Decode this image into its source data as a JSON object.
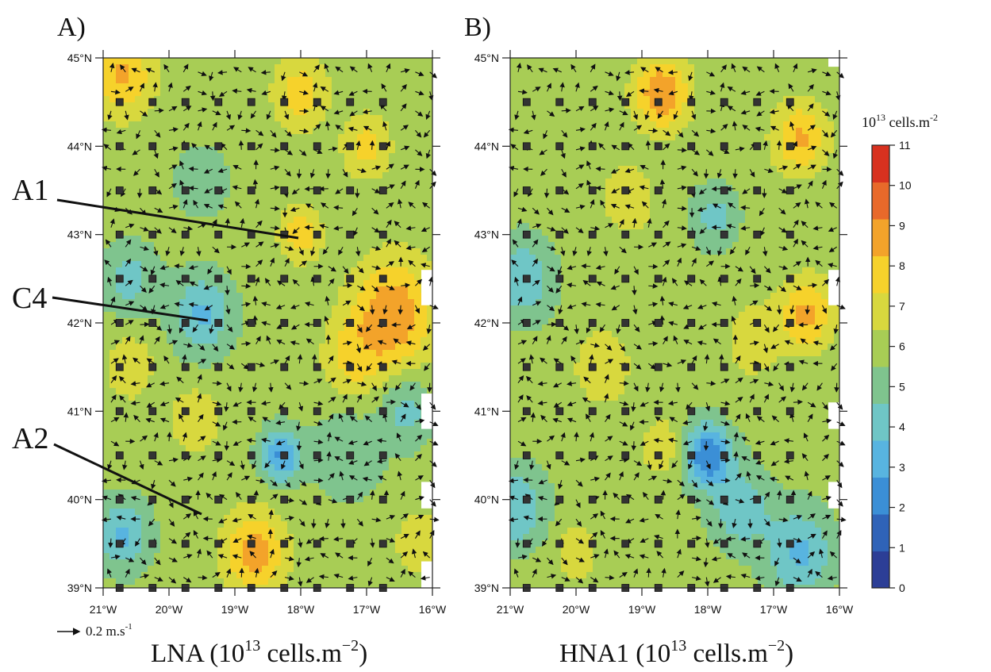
{
  "panels": [
    {
      "letter": "A)",
      "caption_main": "LNA (10",
      "caption_sup": "13",
      "caption_unit": " cells.m",
      "caption_unit_sup": "−2",
      "caption_end": ")",
      "annotations": [
        "A1",
        "C4",
        "A2"
      ]
    },
    {
      "letter": "B)",
      "caption_main": "HNA1 (10",
      "caption_sup": "13",
      "caption_unit": " cells.m",
      "caption_unit_sup": "−2",
      "caption_end": ")",
      "annotations": []
    }
  ],
  "vector_ref": {
    "text": "0.2 m.s",
    "sup": "-1"
  },
  "colorbar": {
    "title": "10",
    "title_sup": "13",
    "title_unit": " cells.m",
    "title_unit_sup": "-2",
    "ticks": [
      "0",
      "1",
      "2",
      "3",
      "4",
      "5",
      "6",
      "7",
      "8",
      "9",
      "10",
      "11"
    ],
    "colors": [
      "#2c3e96",
      "#2f63b8",
      "#3b8fd6",
      "#58b4e0",
      "#6fc6c6",
      "#7fc48e",
      "#a8cd55",
      "#d8d83e",
      "#f6d22b",
      "#f3a32a",
      "#e8692a",
      "#d8311f"
    ]
  },
  "chart_data": [
    {
      "type": "heatmap",
      "title": "LNA (10^13 cells.m^-2)",
      "x_ticks": [
        "21°W",
        "20°W",
        "19°W",
        "18°W",
        "17°W",
        "16°W"
      ],
      "y_ticks": [
        "39°N",
        "40°N",
        "41°N",
        "42°N",
        "43°N",
        "44°N",
        "45°N"
      ],
      "xlim": [
        -21,
        -16
      ],
      "ylim": [
        39,
        45
      ],
      "field_range": [
        0,
        11
      ],
      "annotations": [
        {
          "label": "A1",
          "lon": -18.0,
          "lat": 43.0
        },
        {
          "label": "C4",
          "lon": -19.4,
          "lat": 42.1
        },
        {
          "label": "A2",
          "lon": -19.2,
          "lat": 39.8
        }
      ]
    },
    {
      "type": "heatmap",
      "title": "HNA1 (10^13 cells.m^-2)",
      "x_ticks": [
        "21°W",
        "20°W",
        "19°W",
        "18°W",
        "17°W",
        "16°W"
      ],
      "y_ticks": [
        "39°N",
        "40°N",
        "41°N",
        "42°N",
        "43°N",
        "44°N",
        "45°N"
      ],
      "xlim": [
        -21,
        -16
      ],
      "ylim": [
        39,
        45
      ],
      "field_range": [
        0,
        11
      ]
    }
  ]
}
